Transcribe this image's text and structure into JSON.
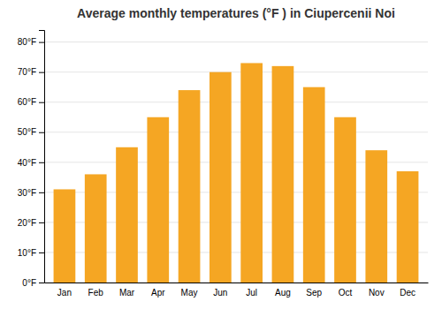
{
  "chart_data": {
    "type": "bar",
    "title": "Average monthly temperatures (°F ) in Ciupercenii Noi",
    "categories": [
      "Jan",
      "Feb",
      "Mar",
      "Apr",
      "May",
      "Jun",
      "Jul",
      "Aug",
      "Sep",
      "Oct",
      "Nov",
      "Dec"
    ],
    "values": [
      31,
      36,
      45,
      55,
      64,
      70,
      73,
      72,
      65,
      55,
      44,
      37
    ],
    "color": "#F5A623",
    "ylim": [
      0,
      84
    ],
    "yticks": [
      {
        "value": 0,
        "label": "0°F"
      },
      {
        "value": 10,
        "label": "10°F"
      },
      {
        "value": 20,
        "label": "20°F"
      },
      {
        "value": 30,
        "label": "30°F"
      },
      {
        "value": 40,
        "label": "40°F"
      },
      {
        "value": 50,
        "label": "50°F"
      },
      {
        "value": 60,
        "label": "60°F"
      },
      {
        "value": 70,
        "label": "70°F"
      },
      {
        "value": 80,
        "label": "80°F"
      }
    ],
    "grid": true
  }
}
